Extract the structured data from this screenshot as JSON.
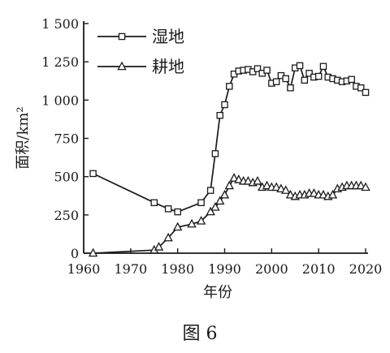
{
  "figure": {
    "caption": "图 6"
  },
  "chart_data": {
    "type": "line",
    "xlabel": "年份",
    "ylabel": "面积/km²",
    "xlim": [
      1960,
      2020
    ],
    "ylim": [
      0,
      1500
    ],
    "x_ticks": [
      1960,
      1970,
      1980,
      1990,
      2000,
      2010,
      2020
    ],
    "x_tick_labels": [
      "1960",
      "1970",
      "1980",
      "1990",
      "2000",
      "2010",
      "2020"
    ],
    "y_ticks": [
      0,
      250,
      500,
      750,
      1000,
      1250,
      1500
    ],
    "y_tick_labels": [
      "0",
      "250",
      "500",
      "750",
      "1 000",
      "1 250",
      "1 500"
    ],
    "grid": false,
    "legend_position": "top-left",
    "series": [
      {
        "name": "湿地",
        "marker": "square",
        "x": [
          1962,
          1975,
          1978,
          1980,
          1985,
          1987,
          1988,
          1989,
          1990,
          1991,
          1992,
          1993,
          1994,
          1995,
          1996,
          1997,
          1998,
          1999,
          2000,
          2001,
          2002,
          2003,
          2004,
          2005,
          2006,
          2007,
          2008,
          2009,
          2010,
          2011,
          2012,
          2013,
          2014,
          2015,
          2016,
          2017,
          2018,
          2019,
          2020
        ],
        "values": [
          520,
          330,
          290,
          270,
          330,
          410,
          650,
          900,
          970,
          1090,
          1170,
          1190,
          1195,
          1200,
          1185,
          1205,
          1175,
          1195,
          1110,
          1120,
          1160,
          1140,
          1080,
          1210,
          1225,
          1130,
          1175,
          1150,
          1155,
          1220,
          1150,
          1140,
          1130,
          1120,
          1125,
          1135,
          1090,
          1080,
          1050
        ]
      },
      {
        "name": "耕地",
        "marker": "triangle",
        "x": [
          1962,
          1975,
          1976,
          1978,
          1980,
          1983,
          1985,
          1987,
          1988,
          1989,
          1990,
          1991,
          1992,
          1993,
          1994,
          1995,
          1996,
          1997,
          1998,
          1999,
          2000,
          2001,
          2002,
          2003,
          2004,
          2005,
          2006,
          2007,
          2008,
          2009,
          2010,
          2011,
          2012,
          2013,
          2014,
          2015,
          2016,
          2017,
          2018,
          2019,
          2020
        ],
        "values": [
          0,
          20,
          40,
          100,
          170,
          190,
          210,
          270,
          300,
          340,
          380,
          440,
          490,
          480,
          470,
          470,
          460,
          470,
          430,
          440,
          430,
          430,
          420,
          410,
          380,
          370,
          380,
          380,
          390,
          390,
          380,
          380,
          370,
          380,
          420,
          430,
          440,
          440,
          440,
          440,
          430
        ]
      }
    ]
  }
}
